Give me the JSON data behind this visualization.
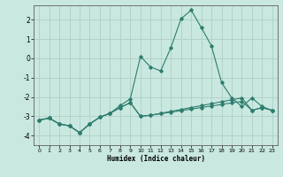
{
  "xlabel": "Humidex (Indice chaleur)",
  "x_values": [
    0,
    1,
    2,
    3,
    4,
    5,
    6,
    7,
    8,
    9,
    10,
    11,
    12,
    13,
    14,
    15,
    16,
    17,
    18,
    19,
    20,
    21,
    22,
    23
  ],
  "line1_y": [
    -3.2,
    -3.1,
    -3.4,
    -3.5,
    -3.85,
    -3.4,
    -3.05,
    -2.85,
    -2.45,
    -2.1,
    0.1,
    -0.45,
    -0.65,
    0.55,
    2.05,
    2.5,
    1.6,
    0.65,
    -1.25,
    -2.05,
    -2.5,
    -2.05,
    -2.5,
    -2.7
  ],
  "line2_y": [
    -3.2,
    -3.1,
    -3.4,
    -3.5,
    -3.85,
    -3.4,
    -3.05,
    -2.85,
    -2.55,
    -2.3,
    -3.0,
    -2.95,
    -2.85,
    -2.75,
    -2.65,
    -2.55,
    -2.45,
    -2.35,
    -2.25,
    -2.15,
    -2.05,
    -2.7,
    -2.55,
    -2.7
  ],
  "line3_y": [
    -3.2,
    -3.1,
    -3.4,
    -3.5,
    -3.85,
    -3.4,
    -3.05,
    -2.85,
    -2.55,
    -2.3,
    -3.0,
    -2.95,
    -2.87,
    -2.79,
    -2.71,
    -2.63,
    -2.55,
    -2.47,
    -2.39,
    -2.31,
    -2.23,
    -2.7,
    -2.55,
    -2.7
  ],
  "line_color": "#2E7D6E",
  "bg_color": "#C8E8E0",
  "grid_color": "#B0CEC8",
  "ylim": [
    -4.5,
    2.75
  ],
  "yticks": [
    -4,
    -3,
    -2,
    -1,
    0,
    1,
    2
  ],
  "xlim": [
    -0.5,
    23.5
  ],
  "xticks": [
    0,
    1,
    2,
    3,
    4,
    5,
    6,
    7,
    8,
    9,
    10,
    11,
    12,
    13,
    14,
    15,
    16,
    17,
    18,
    19,
    20,
    21,
    22,
    23
  ]
}
